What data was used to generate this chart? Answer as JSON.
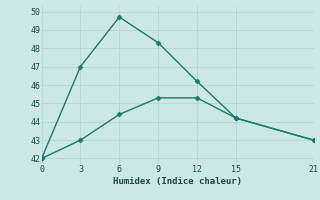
{
  "line1_x": [
    0,
    3,
    6,
    9,
    12,
    15,
    21
  ],
  "line1_y": [
    42.0,
    47.0,
    49.7,
    48.3,
    46.2,
    44.2,
    43.0
  ],
  "line2_x": [
    0,
    3,
    6,
    9,
    12,
    15,
    21
  ],
  "line2_y": [
    42.0,
    43.0,
    44.4,
    45.3,
    45.3,
    44.2,
    43.0
  ],
  "line_color": "#1a7a6e",
  "marker": "D",
  "marker_size": 2.5,
  "xlabel": "Humidex (Indice chaleur)",
  "xlim": [
    0,
    21
  ],
  "ylim": [
    41.7,
    50.3
  ],
  "yticks": [
    42,
    43,
    44,
    45,
    46,
    47,
    48,
    49,
    50
  ],
  "xticks": [
    0,
    3,
    6,
    9,
    12,
    15,
    21
  ],
  "grid_color": "#b8d8d4",
  "bg_color": "#cce8e4",
  "tick_color": "#1a4a44",
  "xlabel_color": "#1a4a44"
}
